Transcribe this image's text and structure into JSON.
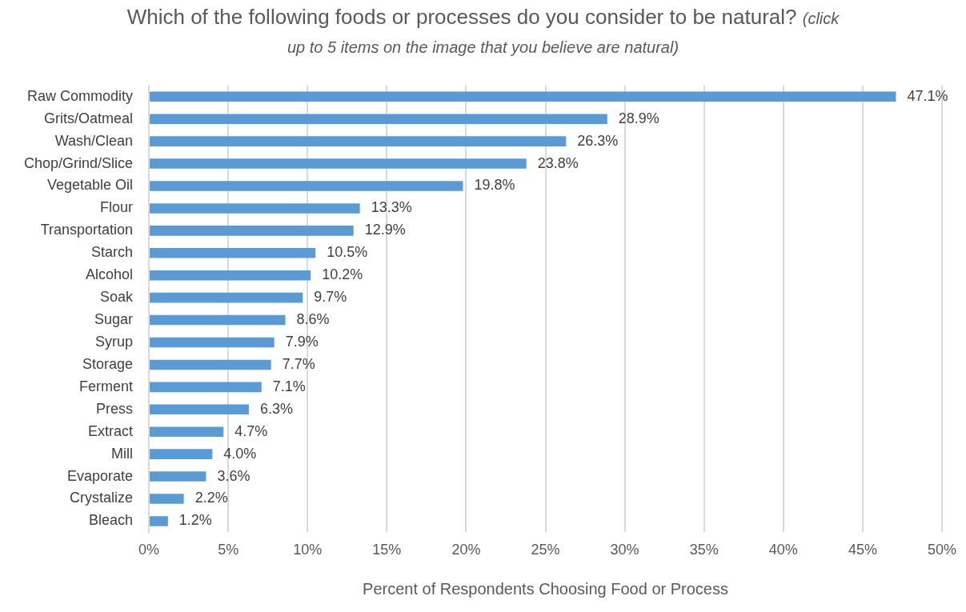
{
  "chart_data": {
    "type": "bar",
    "orientation": "horizontal",
    "title": "Which of the following foods or processes do you consider to be natural?",
    "subtitle": "(click up to 5 items on the image that you believe are natural)",
    "xlabel": "Percent of Respondents Choosing Food or Process",
    "categories": [
      "Raw Commodity",
      "Grits/Oatmeal",
      "Wash/Clean",
      "Chop/Grind/Slice",
      "Vegetable Oil",
      "Flour",
      "Transportation",
      "Starch",
      "Alcohol",
      "Soak",
      "Sugar",
      "Syrup",
      "Storage",
      "Ferment",
      "Press",
      "Extract",
      "Mill",
      "Evaporate",
      "Crystalize",
      "Bleach"
    ],
    "values": [
      47.1,
      28.9,
      26.3,
      23.8,
      19.8,
      13.3,
      12.9,
      10.5,
      10.2,
      9.7,
      8.6,
      7.9,
      7.7,
      7.1,
      6.3,
      4.7,
      4.0,
      3.6,
      2.2,
      1.2
    ],
    "value_labels": [
      "47.1%",
      "28.9%",
      "26.3%",
      "23.8%",
      "19.8%",
      "13.3%",
      "12.9%",
      "10.5%",
      "10.2%",
      "9.7%",
      "8.6%",
      "7.9%",
      "7.7%",
      "7.1%",
      "6.3%",
      "4.7%",
      "4.0%",
      "3.6%",
      "2.2%",
      "1.2%"
    ],
    "color": "#5b9bd5",
    "xlim": [
      0,
      50
    ],
    "xticks": [
      {
        "value": 0,
        "label": "0%"
      },
      {
        "value": 5,
        "label": "5%"
      },
      {
        "value": 10,
        "label": "10%"
      },
      {
        "value": 15,
        "label": "15%"
      },
      {
        "value": 20,
        "label": "20%"
      },
      {
        "value": 25,
        "label": "25%"
      },
      {
        "value": 30,
        "label": "30%"
      },
      {
        "value": 35,
        "label": "35%"
      },
      {
        "value": 40,
        "label": "40%"
      },
      {
        "value": 45,
        "label": "45%"
      },
      {
        "value": 50,
        "label": "50%"
      }
    ],
    "grid": "x",
    "legend": false
  }
}
